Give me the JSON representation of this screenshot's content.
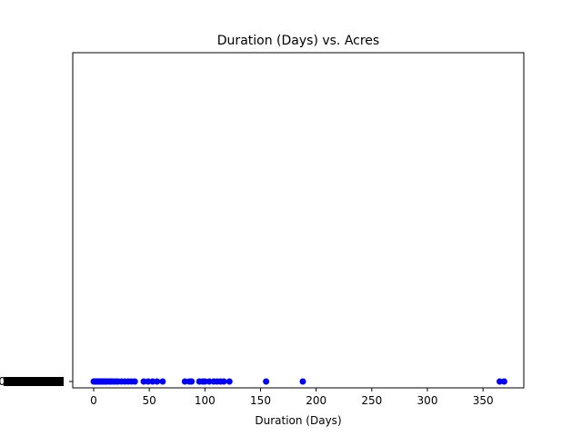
{
  "chart_data": {
    "type": "scatter",
    "title": "Duration (Days) vs. Acres",
    "xlabel": "Duration (Days)",
    "ylabel": "",
    "xlim": [
      -20,
      385
    ],
    "x_ticks": [
      0,
      50,
      100,
      150,
      200,
      250,
      300,
      350
    ],
    "color": "#0000ff",
    "grid": false,
    "y_tick_label": "0",
    "series": [
      {
        "x": [
          0,
          1,
          2,
          3,
          4,
          5,
          6,
          7,
          8,
          9,
          10,
          11,
          12,
          14,
          15,
          16,
          18,
          20,
          22,
          25,
          28,
          31,
          34,
          37,
          45,
          49,
          53,
          57,
          62,
          82,
          86,
          88,
          95,
          98,
          100,
          104,
          108,
          111,
          114,
          117,
          122,
          155,
          188,
          365,
          369
        ],
        "y": [
          0,
          0,
          0,
          0,
          0,
          0,
          0,
          0,
          0,
          0,
          0,
          0,
          0,
          0,
          0,
          0,
          0,
          0,
          0,
          0,
          0,
          0,
          0,
          0,
          0,
          0,
          0,
          0,
          0,
          0,
          0,
          0,
          0,
          0,
          0,
          0,
          0,
          0,
          0,
          0,
          0,
          0,
          0,
          0,
          0
        ]
      }
    ]
  }
}
